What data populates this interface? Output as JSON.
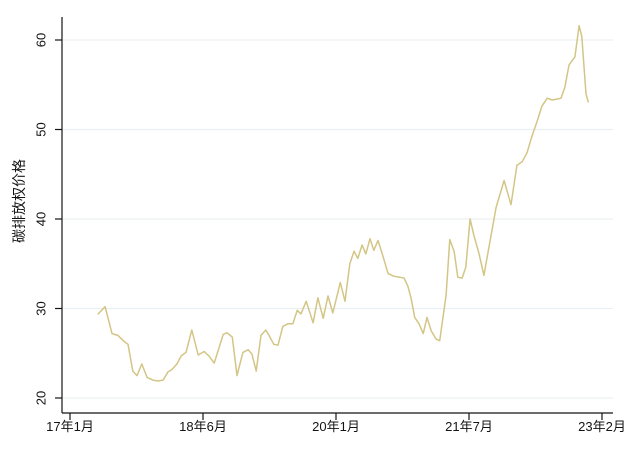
{
  "figure": {
    "background_color": "#ffffff"
  },
  "chart_data": {
    "type": "line",
    "title": "",
    "xlabel": "",
    "ylabel": "碳排放权价格",
    "y_ticks": [
      20,
      30,
      40,
      50,
      60
    ],
    "ylim": [
      20,
      62.6
    ],
    "x_tick_labels": [
      "17年1月",
      "18年6月",
      "20年1月",
      "21年7月",
      "23年2月"
    ],
    "grid": "horizontal gridlines at each y tick",
    "legend": "none",
    "colors": {
      "line": "#d3c585",
      "grid": "#e9f0f2",
      "axis": "#141414",
      "text": "#141414"
    },
    "series": [
      {
        "name": "碳排放权价格",
        "x_pct_between_first_and_last_tick": [
          5.3,
          6.6,
          7.9,
          9.0,
          10.2,
          10.9,
          11.8,
          12.6,
          13.5,
          14.5,
          15.6,
          16.5,
          17.5,
          18.4,
          19.2,
          20.1,
          20.9,
          21.8,
          22.9,
          24.1,
          25.2,
          26.1,
          27.1,
          28.8,
          29.5,
          30.5,
          31.4,
          32.5,
          33.5,
          34.2,
          35.0,
          35.9,
          36.8,
          37.4,
          38.3,
          39.1,
          40.0,
          41.0,
          41.9,
          42.7,
          43.4,
          44.4,
          45.7,
          46.6,
          47.6,
          48.5,
          49.4,
          50.8,
          51.7,
          52.6,
          53.4,
          54.1,
          54.9,
          55.6,
          56.4,
          57.1,
          57.9,
          58.8,
          59.8,
          60.9,
          62.0,
          62.8,
          63.5,
          64.1,
          64.8,
          65.6,
          66.4,
          67.1,
          67.9,
          68.8,
          69.5,
          70.7,
          71.4,
          72.2,
          72.9,
          73.7,
          74.4,
          75.2,
          75.9,
          76.9,
          77.8,
          79.1,
          80.1,
          81.6,
          82.9,
          84.0,
          85.0,
          85.9,
          86.8,
          87.8,
          88.7,
          89.7,
          90.6,
          91.5,
          92.3,
          93.0,
          93.8,
          94.4,
          94.9,
          95.7,
          96.2,
          97.0,
          97.4
        ],
        "values": [
          29.4,
          30.2,
          27.2,
          27.0,
          26.3,
          26.0,
          23.0,
          22.5,
          23.8,
          22.3,
          22.0,
          21.9,
          22.0,
          22.9,
          23.2,
          23.8,
          24.7,
          25.1,
          27.6,
          24.8,
          25.2,
          24.7,
          23.9,
          27.1,
          27.3,
          26.8,
          22.5,
          25.1,
          25.4,
          24.9,
          23.0,
          27.0,
          27.6,
          27.0,
          26.0,
          25.9,
          28.0,
          28.3,
          28.3,
          29.8,
          29.4,
          30.8,
          28.4,
          31.2,
          28.9,
          31.4,
          29.5,
          32.9,
          30.8,
          35.0,
          36.4,
          35.6,
          37.1,
          36.1,
          37.8,
          36.5,
          37.6,
          35.9,
          33.9,
          33.6,
          33.5,
          33.4,
          32.5,
          31.2,
          29.0,
          28.3,
          27.2,
          29.0,
          27.5,
          26.6,
          26.4,
          31.5,
          37.7,
          36.4,
          33.5,
          33.4,
          34.6,
          40.0,
          38.2,
          36.1,
          33.7,
          38.0,
          41.3,
          44.3,
          41.6,
          46.0,
          46.4,
          47.4,
          49.2,
          50.9,
          52.6,
          53.5,
          53.3,
          53.4,
          53.5,
          54.7,
          57.2,
          57.7,
          58.1,
          61.6,
          60.4,
          54.0,
          53.1
        ]
      }
    ]
  }
}
